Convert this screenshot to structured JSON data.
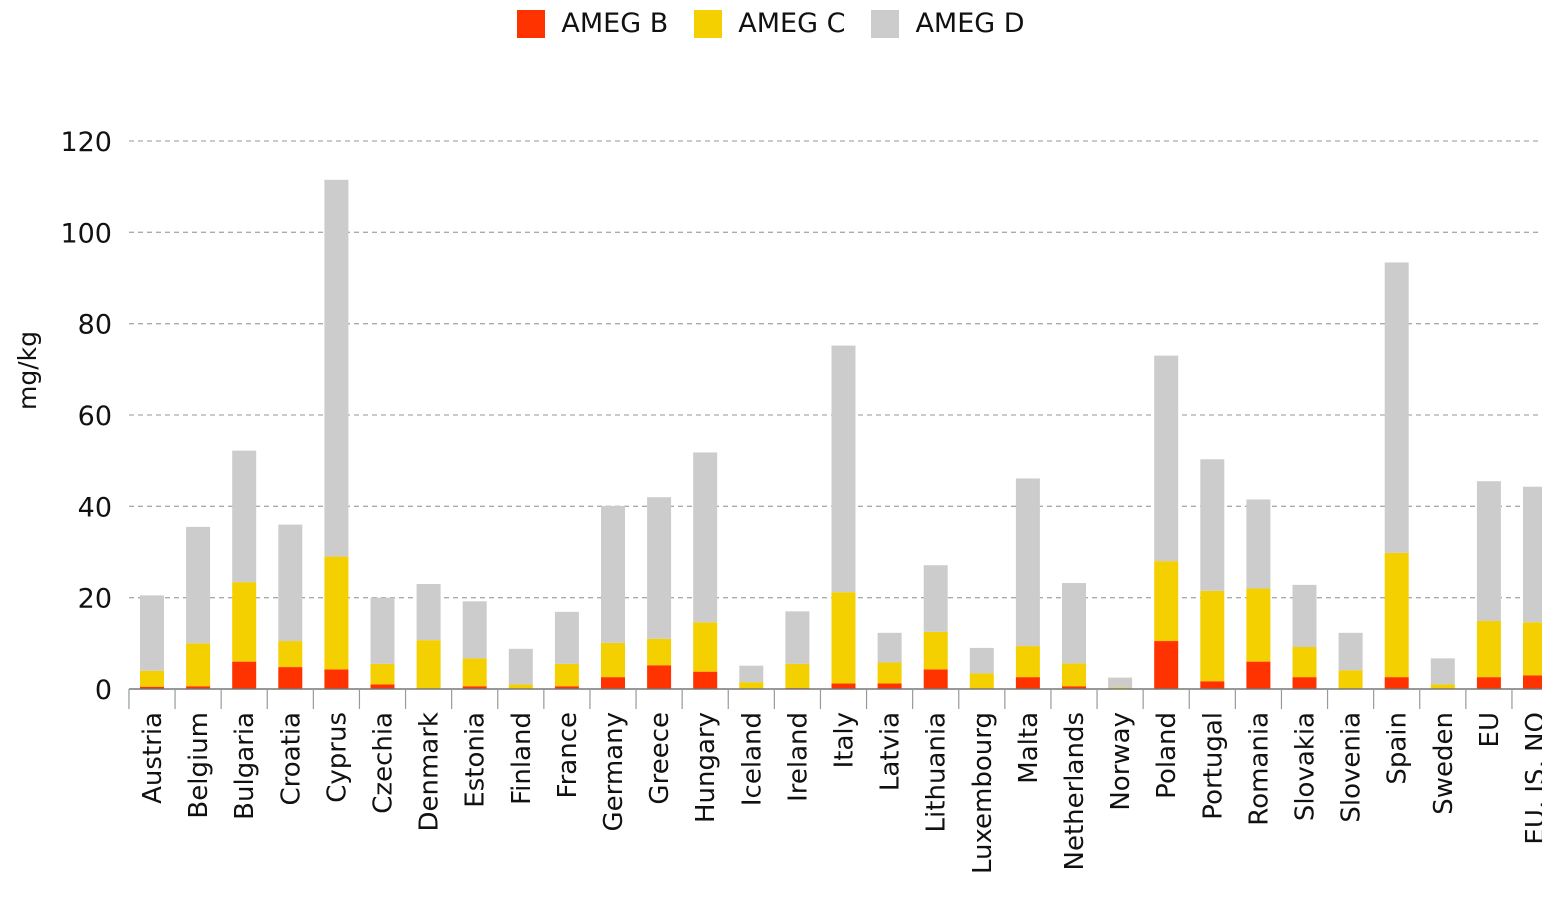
{
  "chart_data": {
    "type": "bar",
    "stacked": true,
    "ylabel": "mg/kg",
    "ylim": [
      0,
      120
    ],
    "yticks": [
      0,
      20,
      40,
      60,
      80,
      100,
      120
    ],
    "grid": true,
    "legend_position": "top-center",
    "categories": [
      "Austria",
      "Belgium",
      "Bulgaria",
      "Croatia",
      "Cyprus",
      "Czechia",
      "Denmark",
      "Estonia",
      "Finland",
      "France",
      "Germany",
      "Greece",
      "Hungary",
      "Iceland",
      "Ireland",
      "Italy",
      "Latvia",
      "Lithuania",
      "Luxembourg",
      "Malta",
      "Netherlands",
      "Norway",
      "Poland",
      "Portugal",
      "Romania",
      "Slovakia",
      "Slovenia",
      "Spain",
      "Sweden",
      "EU",
      "EU, IS, NO"
    ],
    "series": [
      {
        "name": "AMEG B",
        "color": "#ff3300",
        "values": [
          0.5,
          0.6,
          6.0,
          4.8,
          4.3,
          1.0,
          0.1,
          0.6,
          0.1,
          0.6,
          2.6,
          5.2,
          3.8,
          0.1,
          0.2,
          1.2,
          1.2,
          4.3,
          0.1,
          2.6,
          0.6,
          0.1,
          10.5,
          1.7,
          6.0,
          2.6,
          0.1,
          2.6,
          0.1,
          2.6,
          3.0
        ]
      },
      {
        "name": "AMEG C",
        "color": "#f5d000",
        "values": [
          3.5,
          9.4,
          17.4,
          5.7,
          24.7,
          4.5,
          10.6,
          6.1,
          0.9,
          4.9,
          7.5,
          5.8,
          10.8,
          1.4,
          5.3,
          20.0,
          4.6,
          8.2,
          3.3,
          6.8,
          5.0,
          0.2,
          17.5,
          19.8,
          16.0,
          6.6,
          4.0,
          27.2,
          0.9,
          12.3,
          11.6
        ]
      },
      {
        "name": "AMEG D",
        "color": "#cccccc",
        "values": [
          16.5,
          25.5,
          28.8,
          25.5,
          82.5,
          14.5,
          12.3,
          12.5,
          7.8,
          11.4,
          30.0,
          31.0,
          37.2,
          3.6,
          11.5,
          54.0,
          6.5,
          14.6,
          5.6,
          36.7,
          17.6,
          2.2,
          45.0,
          28.8,
          19.5,
          13.6,
          8.2,
          63.6,
          5.7,
          30.6,
          29.7
        ]
      }
    ]
  }
}
